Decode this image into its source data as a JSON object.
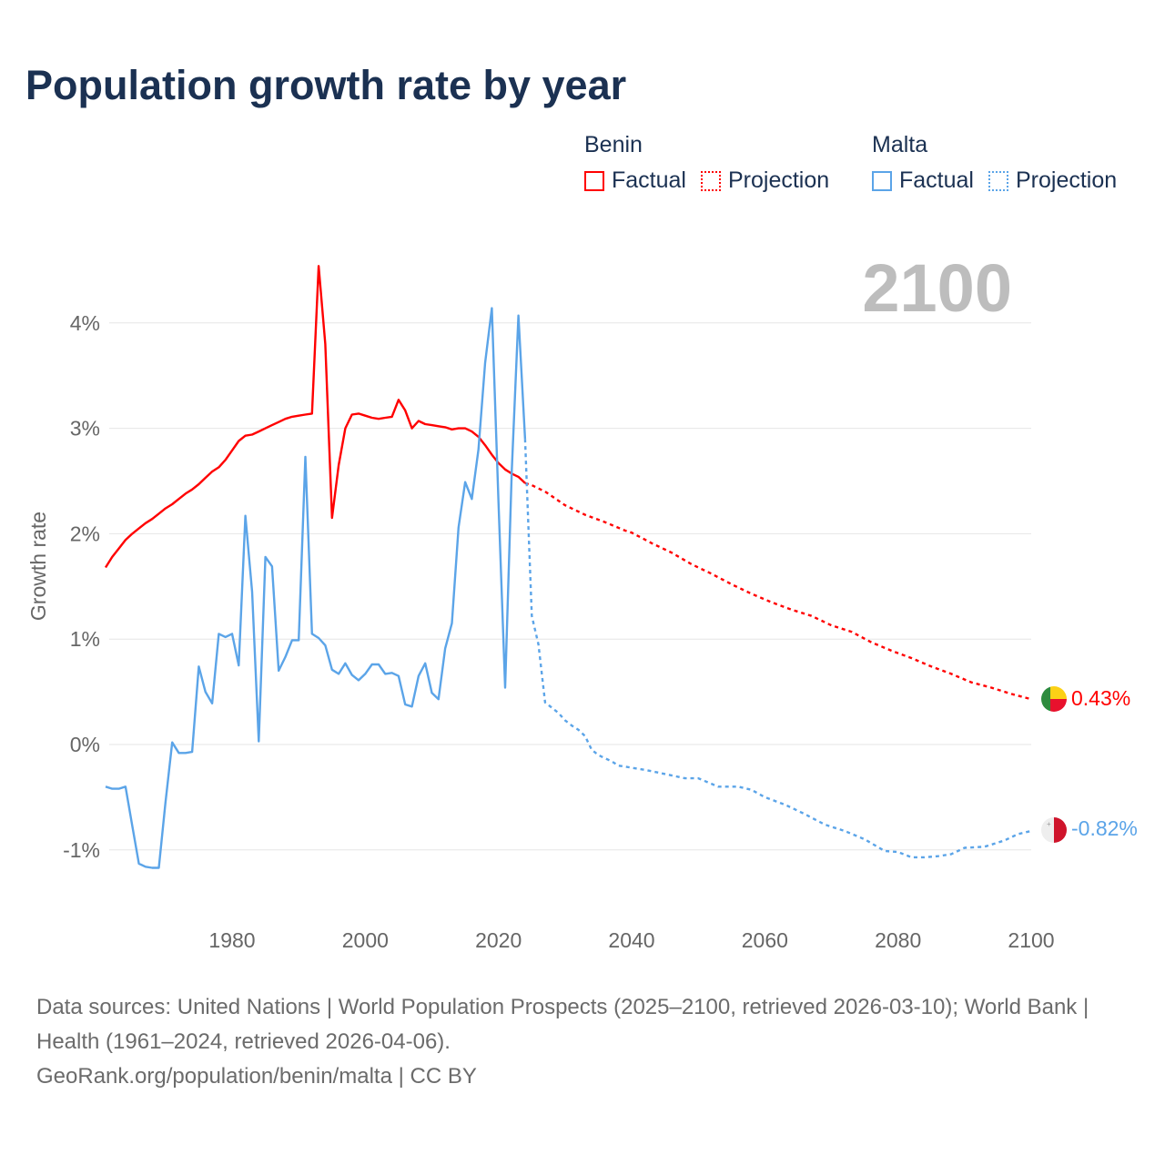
{
  "title": "Population growth rate by year",
  "legend": {
    "groups": [
      {
        "country": "Benin",
        "factual": "Factual",
        "projection": "Projection",
        "color": "#ff0000"
      },
      {
        "country": "Malta",
        "factual": "Factual",
        "projection": "Projection",
        "color": "#5ba4e8"
      }
    ]
  },
  "current_year_label": "2100",
  "source": {
    "line1": "Data sources: United Nations | World Population Prospects (2025–2100, retrieved 2026-03-10); World Bank | Health (1961–2024, retrieved 2026-04-06).",
    "line2": "GeoRank.org/population/benin/malta | CC BY"
  },
  "chart_data": {
    "type": "line",
    "title": "Population growth rate by year",
    "xlabel": "",
    "ylabel": "Growth rate",
    "xlim": [
      1961,
      2100
    ],
    "ylim": [
      -1.6,
      4.6
    ],
    "grid": true,
    "x_ticks": [
      1980,
      2000,
      2020,
      2040,
      2060,
      2080,
      2100
    ],
    "y_ticks": [
      -1,
      0,
      1,
      2,
      3,
      4
    ],
    "y_tick_labels": [
      "-1%",
      "0%",
      "1%",
      "2%",
      "3%",
      "4%"
    ],
    "legend_position": "top-right",
    "end_labels": {
      "Benin": "0.43%",
      "Malta": "-0.82%"
    },
    "series": [
      {
        "name": "Benin",
        "kind": "Factual",
        "color": "#ff0000",
        "x": [
          1961,
          1962,
          1963,
          1964,
          1965,
          1966,
          1967,
          1968,
          1969,
          1970,
          1971,
          1972,
          1973,
          1974,
          1975,
          1976,
          1977,
          1978,
          1979,
          1980,
          1981,
          1982,
          1983,
          1984,
          1985,
          1986,
          1987,
          1988,
          1989,
          1990,
          1991,
          1992,
          1993,
          1994,
          1995,
          1996,
          1997,
          1998,
          1999,
          2000,
          2001,
          2002,
          2003,
          2004,
          2005,
          2006,
          2007,
          2008,
          2009,
          2010,
          2011,
          2012,
          2013,
          2014,
          2015,
          2016,
          2017,
          2018,
          2019,
          2020,
          2021,
          2022,
          2023,
          2024
        ],
        "y": [
          1.68,
          1.78,
          1.86,
          1.94,
          2.0,
          2.05,
          2.1,
          2.14,
          2.19,
          2.24,
          2.28,
          2.33,
          2.38,
          2.42,
          2.47,
          2.53,
          2.59,
          2.63,
          2.7,
          2.79,
          2.88,
          2.93,
          2.94,
          2.97,
          3.0,
          3.03,
          3.06,
          3.09,
          3.11,
          3.12,
          3.13,
          3.14,
          4.54,
          3.8,
          2.15,
          2.65,
          3.0,
          3.13,
          3.14,
          3.12,
          3.1,
          3.09,
          3.1,
          3.11,
          3.27,
          3.17,
          3.0,
          3.07,
          3.04,
          3.03,
          3.02,
          3.01,
          2.99,
          3.0,
          3.0,
          2.97,
          2.92,
          2.84,
          2.75,
          2.67,
          2.61,
          2.57,
          2.54,
          2.48
        ]
      },
      {
        "name": "Benin",
        "kind": "Projection",
        "color": "#ff0000",
        "x": [
          2024,
          2025,
          2027,
          2030,
          2033,
          2036,
          2039,
          2040,
          2043,
          2046,
          2049,
          2052,
          2055,
          2058,
          2061,
          2064,
          2067,
          2070,
          2073,
          2076,
          2079,
          2082,
          2085,
          2088,
          2091,
          2094,
          2097,
          2100
        ],
        "y": [
          2.48,
          2.46,
          2.4,
          2.27,
          2.18,
          2.11,
          2.03,
          2.01,
          1.91,
          1.82,
          1.71,
          1.62,
          1.52,
          1.43,
          1.35,
          1.28,
          1.22,
          1.13,
          1.07,
          0.97,
          0.89,
          0.82,
          0.74,
          0.67,
          0.59,
          0.54,
          0.48,
          0.43
        ]
      },
      {
        "name": "Malta",
        "kind": "Factual",
        "color": "#5ba4e8",
        "x": [
          1961,
          1962,
          1963,
          1964,
          1965,
          1966,
          1967,
          1968,
          1969,
          1970,
          1971,
          1972,
          1973,
          1974,
          1975,
          1976,
          1977,
          1978,
          1979,
          1980,
          1981,
          1982,
          1983,
          1984,
          1985,
          1986,
          1987,
          1988,
          1989,
          1990,
          1991,
          1992,
          1993,
          1994,
          1995,
          1996,
          1997,
          1998,
          1999,
          2000,
          2001,
          2002,
          2003,
          2004,
          2005,
          2006,
          2007,
          2008,
          2009,
          2010,
          2011,
          2012,
          2013,
          2014,
          2015,
          2016,
          2017,
          2018,
          2019,
          2020,
          2021,
          2022,
          2023,
          2024
        ],
        "y": [
          -0.4,
          -0.42,
          -0.42,
          -0.4,
          -0.77,
          -1.13,
          -1.16,
          -1.17,
          -1.17,
          -0.55,
          0.02,
          -0.08,
          -0.08,
          -0.07,
          0.74,
          0.5,
          0.39,
          1.05,
          1.02,
          1.05,
          0.75,
          2.17,
          1.45,
          0.03,
          1.78,
          1.69,
          0.7,
          0.83,
          0.99,
          0.99,
          2.73,
          1.05,
          1.01,
          0.94,
          0.71,
          0.67,
          0.77,
          0.66,
          0.61,
          0.67,
          0.76,
          0.76,
          0.67,
          0.68,
          0.65,
          0.38,
          0.36,
          0.65,
          0.77,
          0.49,
          0.43,
          0.91,
          1.15,
          2.06,
          2.49,
          2.33,
          2.8,
          3.62,
          4.14,
          2.3,
          0.54,
          2.6,
          4.07,
          2.9
        ]
      },
      {
        "name": "Malta",
        "kind": "Projection",
        "color": "#5ba4e8",
        "x": [
          2024,
          2025,
          2026,
          2027,
          2028,
          2029,
          2030,
          2031,
          2032,
          2033,
          2034,
          2035,
          2036,
          2037,
          2038,
          2039,
          2040,
          2042,
          2045,
          2048,
          2050,
          2053,
          2056,
          2058,
          2060,
          2063,
          2066,
          2069,
          2072,
          2075,
          2078,
          2080,
          2082,
          2084,
          2086,
          2088,
          2090,
          2093,
          2096,
          2098,
          2100
        ],
        "y": [
          2.9,
          1.22,
          0.95,
          0.4,
          0.35,
          0.3,
          0.23,
          0.18,
          0.14,
          0.08,
          -0.05,
          -0.1,
          -0.13,
          -0.16,
          -0.2,
          -0.21,
          -0.22,
          -0.24,
          -0.28,
          -0.32,
          -0.32,
          -0.4,
          -0.4,
          -0.43,
          -0.5,
          -0.57,
          -0.66,
          -0.76,
          -0.82,
          -0.9,
          -1.01,
          -1.02,
          -1.07,
          -1.07,
          -1.06,
          -1.04,
          -0.98,
          -0.97,
          -0.91,
          -0.85,
          -0.82
        ]
      }
    ]
  }
}
